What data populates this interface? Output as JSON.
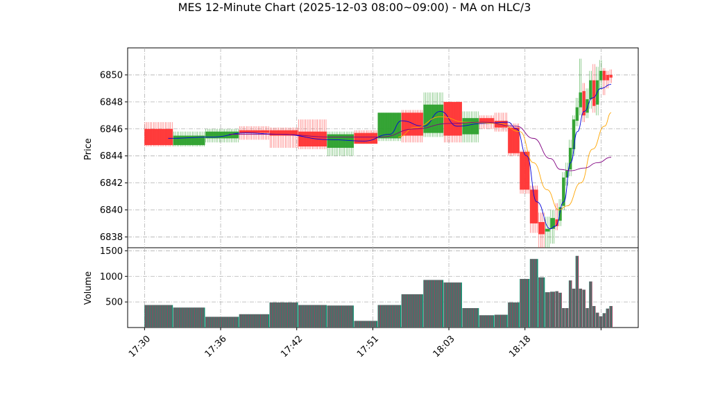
{
  "chart_data": {
    "type": "candlestick",
    "title": "MES 12-Minute Chart (2025-12-03 08:00~09:00) - MA on HLC/3",
    "price_panel": {
      "ylabel": "Price",
      "ylim": [
        6837.2,
        6852.0
      ],
      "yticks": [
        6838,
        6840,
        6842,
        6844,
        6846,
        6848,
        6850
      ],
      "grid": true
    },
    "volume_panel": {
      "ylabel": "Volume",
      "ylim": [
        0,
        1560
      ],
      "yticks": [
        500,
        1000,
        1500
      ],
      "grid": true
    },
    "xlim": [
      -10,
      292
    ],
    "xticks": [
      {
        "x": 0,
        "label": "17:30"
      },
      {
        "x": 45,
        "label": "17:36"
      },
      {
        "x": 90,
        "label": "17:42"
      },
      {
        "x": 135,
        "label": "17:51"
      },
      {
        "x": 180,
        "label": "18:03"
      },
      {
        "x": 225,
        "label": "18:18"
      },
      {
        "x": 270,
        "label": ""
      }
    ],
    "colors": {
      "up": "#2ca02c",
      "down": "#ff3333",
      "vol_a": "#1f8a70",
      "vol_b": "#b4325a",
      "ma_fast": "#0000dd",
      "ma_mid": "#ffa500",
      "ma_slow": "#800080"
    },
    "bars": [
      {
        "x0": 0,
        "x1": 16,
        "open": 6846.0,
        "close": 6844.8,
        "high": 6846.5,
        "low": 6844.7,
        "volume": 440
      },
      {
        "x0": 17,
        "x1": 35,
        "open": 6844.8,
        "close": 6845.5,
        "high": 6845.8,
        "low": 6844.7,
        "volume": 390
      },
      {
        "x0": 36,
        "x1": 55,
        "open": 6845.3,
        "close": 6845.8,
        "high": 6846.0,
        "low": 6845.0,
        "volume": 210
      },
      {
        "x0": 56,
        "x1": 73,
        "open": 6845.9,
        "close": 6845.7,
        "high": 6846.2,
        "low": 6845.2,
        "volume": 260
      },
      {
        "x0": 74,
        "x1": 90,
        "open": 6845.9,
        "close": 6845.5,
        "high": 6846.1,
        "low": 6844.6,
        "volume": 490
      },
      {
        "x0": 91,
        "x1": 107,
        "open": 6845.8,
        "close": 6844.7,
        "high": 6846.7,
        "low": 6844.5,
        "volume": 440
      },
      {
        "x0": 108,
        "x1": 123,
        "open": 6844.6,
        "close": 6845.6,
        "high": 6845.8,
        "low": 6844.0,
        "volume": 430
      },
      {
        "x0": 124,
        "x1": 137,
        "open": 6845.7,
        "close": 6844.9,
        "high": 6845.9,
        "low": 6844.9,
        "volume": 130
      },
      {
        "x0": 138,
        "x1": 151,
        "open": 6845.3,
        "close": 6847.2,
        "high": 6847.2,
        "low": 6845.1,
        "volume": 440
      },
      {
        "x0": 152,
        "x1": 164,
        "open": 6847.2,
        "close": 6845.5,
        "high": 6847.4,
        "low": 6845.0,
        "volume": 650
      },
      {
        "x0": 165,
        "x1": 176,
        "open": 6845.7,
        "close": 6847.8,
        "high": 6848.7,
        "low": 6845.4,
        "volume": 930
      },
      {
        "x0": 177,
        "x1": 187,
        "open": 6848.0,
        "close": 6845.5,
        "high": 6848.0,
        "low": 6845.0,
        "volume": 880
      },
      {
        "x0": 188,
        "x1": 197,
        "open": 6845.6,
        "close": 6846.8,
        "high": 6847.3,
        "low": 6845.0,
        "volume": 380
      },
      {
        "x0": 198,
        "x1": 206,
        "open": 6846.8,
        "close": 6846.4,
        "high": 6847.0,
        "low": 6846.0,
        "volume": 240
      },
      {
        "x0": 207,
        "x1": 214,
        "open": 6846.6,
        "close": 6846.1,
        "high": 6847.2,
        "low": 6845.8,
        "volume": 250
      },
      {
        "x0": 215,
        "x1": 221,
        "open": 6846.1,
        "close": 6844.2,
        "high": 6846.4,
        "low": 6844.0,
        "volume": 490
      },
      {
        "x0": 222,
        "x1": 227,
        "open": 6844.3,
        "close": 6841.5,
        "high": 6844.4,
        "low": 6841.2,
        "volume": 950
      },
      {
        "x0": 228,
        "x1": 232,
        "open": 6841.5,
        "close": 6839.0,
        "high": 6841.8,
        "low": 6838.3,
        "volume": 1340
      },
      {
        "x0": 233,
        "x1": 236,
        "open": 6839.1,
        "close": 6838.2,
        "high": 6839.8,
        "low": 6837.2,
        "volume": 980
      },
      {
        "x0": 237,
        "x1": 239,
        "open": 6838.4,
        "close": 6838.6,
        "high": 6839.5,
        "low": 6837.2,
        "volume": 690
      },
      {
        "x0": 240,
        "x1": 242,
        "open": 6838.6,
        "close": 6839.4,
        "high": 6840.0,
        "low": 6837.5,
        "volume": 700
      },
      {
        "x0": 243,
        "x1": 244,
        "open": 6839.3,
        "close": 6838.8,
        "high": 6840.5,
        "low": 6838.5,
        "volume": 710
      },
      {
        "x0": 245,
        "x1": 246,
        "open": 6839.2,
        "close": 6840.2,
        "high": 6840.8,
        "low": 6838.8,
        "volume": 680
      },
      {
        "x0": 247,
        "x1": 248,
        "open": 6840.3,
        "close": 6842.4,
        "high": 6842.8,
        "low": 6840.0,
        "volume": 380
      },
      {
        "x0": 249,
        "x1": 250,
        "open": 6842.4,
        "close": 6842.9,
        "high": 6843.5,
        "low": 6841.8,
        "volume": 380
      },
      {
        "x0": 251,
        "x1": 252,
        "open": 6843.0,
        "close": 6844.6,
        "high": 6845.2,
        "low": 6842.5,
        "volume": 920
      },
      {
        "x0": 253,
        "x1": 254,
        "open": 6844.5,
        "close": 6846.7,
        "high": 6847.0,
        "low": 6844.0,
        "volume": 760
      },
      {
        "x0": 255,
        "x1": 256,
        "open": 6846.6,
        "close": 6847.6,
        "high": 6848.3,
        "low": 6846.2,
        "volume": 1400
      },
      {
        "x0": 257,
        "x1": 258,
        "open": 6847.6,
        "close": 6848.7,
        "high": 6851.2,
        "low": 6847.0,
        "volume": 760
      },
      {
        "x0": 259,
        "x1": 260,
        "open": 6848.8,
        "close": 6847.0,
        "high": 6849.4,
        "low": 6846.5,
        "volume": 740
      },
      {
        "x0": 261,
        "x1": 262,
        "open": 6847.2,
        "close": 6848.2,
        "high": 6849.0,
        "low": 6846.8,
        "volume": 380
      },
      {
        "x0": 263,
        "x1": 264,
        "open": 6848.2,
        "close": 6849.6,
        "high": 6850.3,
        "low": 6847.5,
        "volume": 900
      },
      {
        "x0": 265,
        "x1": 266,
        "open": 6849.6,
        "close": 6847.7,
        "high": 6850.8,
        "low": 6847.2,
        "volume": 420
      },
      {
        "x0": 267,
        "x1": 268,
        "open": 6847.8,
        "close": 6849.6,
        "high": 6850.6,
        "low": 6847.0,
        "volume": 290
      },
      {
        "x0": 269,
        "x1": 270,
        "open": 6849.6,
        "close": 6850.3,
        "high": 6851.1,
        "low": 6848.9,
        "volume": 220
      },
      {
        "x0": 271,
        "x1": 272,
        "open": 6850.3,
        "close": 6849.6,
        "high": 6850.5,
        "low": 6848.5,
        "volume": 280
      },
      {
        "x0": 273,
        "x1": 274,
        "open": 6850.0,
        "close": 6849.6,
        "high": 6850.3,
        "low": 6849.0,
        "volume": 370
      },
      {
        "x0": 275,
        "x1": 276,
        "open": 6850.0,
        "close": 6849.8,
        "high": 6850.4,
        "low": 6849.4,
        "volume": 420
      }
    ],
    "ma_series": [
      {
        "style": "fast",
        "points": [
          [
            14,
            6845.3
          ],
          [
            40,
            6845.4
          ],
          [
            60,
            6845.7
          ],
          [
            80,
            6845.6
          ],
          [
            110,
            6845.2
          ],
          [
            130,
            6845.1
          ],
          [
            145,
            6845.6
          ],
          [
            152,
            6846.6
          ],
          [
            165,
            6846.2
          ],
          [
            175,
            6847.3
          ],
          [
            185,
            6846.2
          ],
          [
            200,
            6846.4
          ],
          [
            215,
            6846.5
          ],
          [
            220,
            6846.0
          ],
          [
            226,
            6844.0
          ],
          [
            232,
            6840.6
          ],
          [
            240,
            6838.6
          ],
          [
            243,
            6838.8
          ],
          [
            248,
            6840.6
          ],
          [
            252,
            6843.5
          ],
          [
            256,
            6845.8
          ],
          [
            260,
            6847.3
          ],
          [
            265,
            6848.3
          ],
          [
            270,
            6849.0
          ],
          [
            276,
            6849.3
          ]
        ]
      },
      {
        "style": "mid",
        "points": [
          [
            150,
            6845.4
          ],
          [
            160,
            6846.1
          ],
          [
            175,
            6846.9
          ],
          [
            190,
            6846.5
          ],
          [
            210,
            6846.4
          ],
          [
            222,
            6845.8
          ],
          [
            230,
            6843.5
          ],
          [
            238,
            6841.5
          ],
          [
            245,
            6840.0
          ],
          [
            250,
            6840.3
          ],
          [
            258,
            6842.0
          ],
          [
            265,
            6844.5
          ],
          [
            272,
            6846.2
          ],
          [
            276,
            6847.2
          ]
        ]
      },
      {
        "style": "slow",
        "points": [
          [
            50,
            6845.6
          ],
          [
            80,
            6845.6
          ],
          [
            110,
            6845.4
          ],
          [
            140,
            6845.4
          ],
          [
            160,
            6846.0
          ],
          [
            180,
            6846.4
          ],
          [
            200,
            6846.5
          ],
          [
            220,
            6846.2
          ],
          [
            230,
            6845.3
          ],
          [
            240,
            6843.8
          ],
          [
            246,
            6843.0
          ],
          [
            252,
            6842.9
          ],
          [
            260,
            6843.1
          ],
          [
            268,
            6843.5
          ],
          [
            276,
            6843.9
          ]
        ]
      }
    ]
  }
}
